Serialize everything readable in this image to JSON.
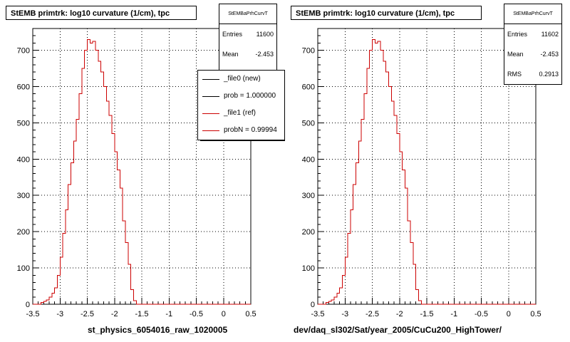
{
  "colors": {
    "new_line": "#000000",
    "ref_line": "#cc0000",
    "frame": "#000000",
    "grid": "#000000"
  },
  "chart_data": [
    {
      "type": "line",
      "title": "StEMB primtrk: log10 curvature (1/cm), tpc",
      "xlabel": "st_physics_6054016_raw_1020005",
      "ylabel": "",
      "xlim": [
        -3.5,
        0.5
      ],
      "ylim": [
        0,
        760
      ],
      "xticks": [
        "-3.5",
        "-3",
        "-2.5",
        "-2",
        "-1.5",
        "-1",
        "-0.5",
        "0",
        "0.5"
      ],
      "yticks": [
        "0",
        "100",
        "200",
        "300",
        "400",
        "500",
        "600",
        "700"
      ],
      "grid": true,
      "stats": {
        "name": "StEMBaPrhCurvT",
        "entries_label": "Entries",
        "entries": "11600",
        "mean_label": "Mean",
        "mean": "-2.453"
      },
      "legend": {
        "placement": "top-right",
        "entries": [
          {
            "label": "_file0 (new)",
            "color": "#000000"
          },
          {
            "label": "prob = 1.000000",
            "color": "#000000"
          },
          {
            "label": "_file1 (ref)",
            "color": "#cc0000"
          },
          {
            "label": "probN = 0.99994",
            "color": "#cc0000"
          }
        ]
      },
      "bin_width": 0.05,
      "bin_start": -3.5,
      "series": [
        {
          "name": "_file1 (ref)",
          "values": [
            0,
            0,
            0,
            5,
            8,
            12,
            20,
            30,
            45,
            80,
            130,
            195,
            260,
            330,
            390,
            450,
            510,
            580,
            650,
            700,
            730,
            720,
            725,
            700,
            670,
            640,
            600,
            560,
            520,
            470,
            420,
            370,
            320,
            230,
            170,
            110,
            40,
            10,
            0,
            0,
            0,
            0,
            0,
            0,
            0,
            0,
            0,
            0,
            0,
            0,
            0,
            0,
            0,
            0,
            0,
            0,
            0,
            0,
            0,
            0,
            0,
            0,
            0,
            0,
            0,
            0,
            0,
            0,
            0,
            0,
            0,
            0,
            0,
            0,
            0,
            0,
            0,
            0,
            0,
            0
          ]
        }
      ]
    },
    {
      "type": "line",
      "title": "StEMB primtrk: log10 curvature (1/cm), tpc",
      "xlabel": "dev/daq_sl302/Sat/year_2005/CuCu200_HighTower/",
      "ylabel": "",
      "xlim": [
        -3.5,
        0.5
      ],
      "ylim": [
        0,
        760
      ],
      "xticks": [
        "-3.5",
        "-3",
        "-2.5",
        "-2",
        "-1.5",
        "-1",
        "-0.5",
        "0",
        "0.5"
      ],
      "yticks": [
        "0",
        "100",
        "200",
        "300",
        "400",
        "500",
        "600",
        "700"
      ],
      "grid": true,
      "stats": {
        "name": "StEMBaPrhCurvT",
        "entries_label": "Entries",
        "entries": "11602",
        "mean_label": "Mean",
        "mean": "-2.453",
        "rms_label": "RMS",
        "rms": "0.2913"
      },
      "bin_width": 0.05,
      "bin_start": -3.5,
      "series": [
        {
          "name": "",
          "values": [
            0,
            0,
            0,
            5,
            8,
            12,
            20,
            30,
            45,
            80,
            130,
            195,
            260,
            330,
            390,
            450,
            510,
            580,
            650,
            700,
            730,
            720,
            725,
            700,
            670,
            640,
            600,
            560,
            520,
            470,
            420,
            370,
            320,
            230,
            170,
            110,
            40,
            10,
            0,
            0,
            0,
            0,
            0,
            0,
            0,
            0,
            0,
            0,
            0,
            0,
            0,
            0,
            0,
            0,
            0,
            0,
            0,
            0,
            0,
            0,
            0,
            0,
            0,
            0,
            0,
            0,
            0,
            0,
            0,
            0,
            0,
            0,
            0,
            0,
            0,
            0,
            0,
            0,
            0,
            0
          ]
        }
      ]
    }
  ]
}
